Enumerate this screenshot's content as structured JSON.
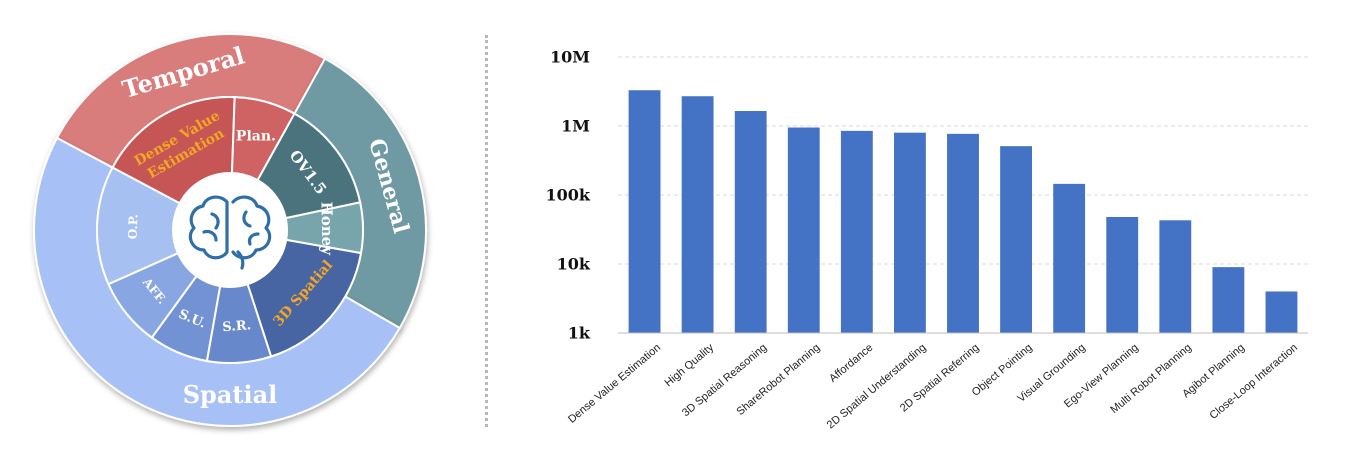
{
  "sunburst": {
    "outer": [
      {
        "label": "Temporal",
        "color": "#d97b7b",
        "text_color": "#ffffff"
      },
      {
        "label": "General",
        "color": "#6f9aa3",
        "text_color": "#ffffff"
      },
      {
        "label": "Spatial",
        "color": "#a7c1f7",
        "text_color": "#ffffff"
      }
    ],
    "inner": [
      {
        "label": "Dense Value Estimation",
        "color": "#c65656",
        "text_color": "#f5a623"
      },
      {
        "label": "Plan.",
        "color": "#cf6363",
        "text_color": "#ffffff"
      },
      {
        "label": "OV1.5",
        "color": "#4a737d",
        "text_color": "#ffffff"
      },
      {
        "label": "Honey",
        "color": "#78a5ac",
        "text_color": "#ffffff"
      },
      {
        "label": "3D Spatial",
        "color": "#4765a3",
        "text_color": "#f5a623"
      },
      {
        "label": "S.R.",
        "color": "#6888cc",
        "text_color": "#ffffff"
      },
      {
        "label": "S.U.",
        "color": "#7392d4",
        "text_color": "#ffffff"
      },
      {
        "label": "AFF.",
        "color": "#88a6e2",
        "text_color": "#ffffff"
      },
      {
        "label": "O.P.",
        "color": "#a6c0f2",
        "text_color": "#ffffff"
      }
    ],
    "center_icon": "brain-icon",
    "icon_color": "#2f6fa8"
  },
  "chart_data": {
    "type": "bar",
    "scale": "log",
    "categories": [
      "Dense Value Estimation",
      "High Quality",
      "3D Spatial Reasoning",
      "ShareRobot Planning",
      "Affordance",
      "2D Spatial Understanding",
      "2D Spatial Referring",
      "Object Pointing",
      "Visual Grounding",
      "Ego-View Planning",
      "Multi Robot Planning",
      "Agibot Planning",
      "Close-Loop Interaction"
    ],
    "values": [
      3300000,
      2700000,
      1650000,
      950000,
      850000,
      800000,
      770000,
      510000,
      145000,
      48000,
      43000,
      9000,
      4000
    ],
    "yticks": [
      1000,
      10000,
      100000,
      1000000,
      10000000
    ],
    "ytick_labels": [
      "1k",
      "10k",
      "100k",
      "1M",
      "10M"
    ],
    "ylim": [
      1000,
      10000000
    ],
    "bar_color": "#4472c4",
    "grid": true,
    "title": "",
    "xlabel": "",
    "ylabel": ""
  }
}
